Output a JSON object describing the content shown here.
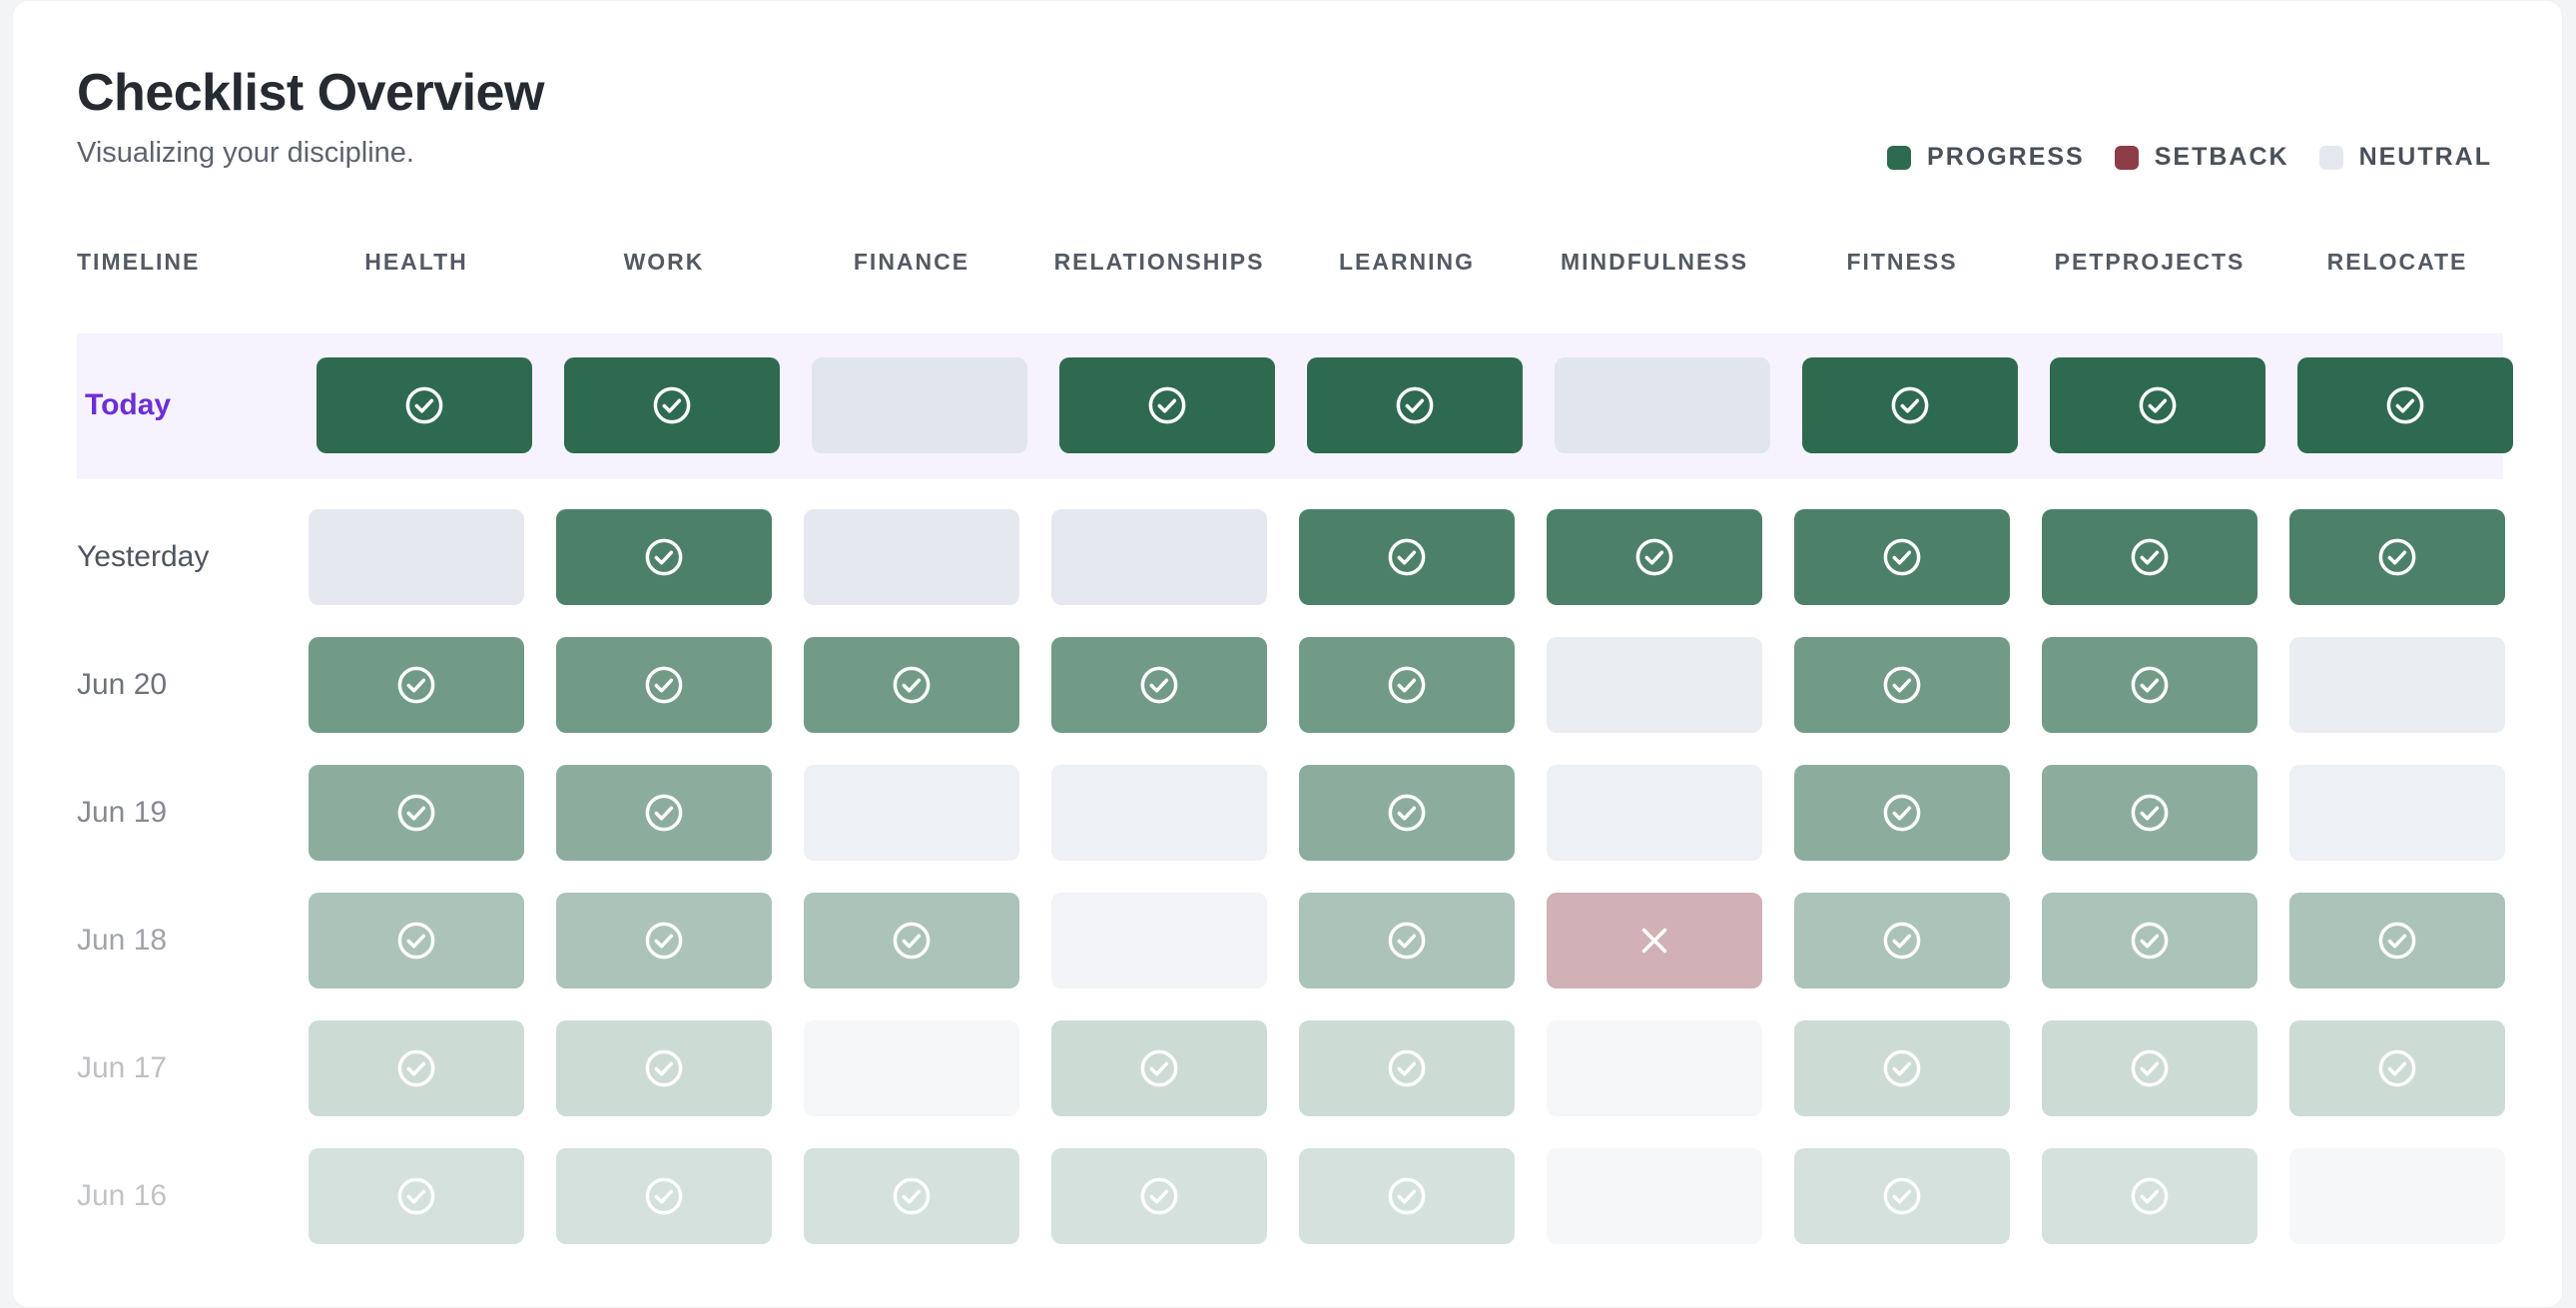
{
  "header": {
    "title": "Checklist Overview",
    "subtitle": "Visualizing your discipline."
  },
  "legend": [
    {
      "label": "PROGRESS",
      "color": "#2e6a4f"
    },
    {
      "label": "SETBACK",
      "color": "#8c3d48"
    },
    {
      "label": "NEUTRAL",
      "color": "#e4e8ee"
    }
  ],
  "columns": {
    "timeline_label": "TIMELINE",
    "items": [
      "HEALTH",
      "WORK",
      "FINANCE",
      "RELATIONSHIPS",
      "LEARNING",
      "MINDFULNESS",
      "FITNESS",
      "PETPROJECTS",
      "RELOCATE"
    ]
  },
  "colors": {
    "progress": "#2e6a4f",
    "setback": "#8c3d48",
    "neutral": "#e4e8ee",
    "today_highlight": "#f6f3ff",
    "today_label": "#6d2ed6"
  },
  "rows": [
    {
      "label": "Today",
      "highlight": true,
      "opacity": 1.0,
      "cells": [
        "progress",
        "progress",
        "neutral",
        "progress",
        "progress",
        "neutral",
        "progress",
        "progress",
        "progress"
      ]
    },
    {
      "label": "Yesterday",
      "highlight": false,
      "opacity": 0.85,
      "cells": [
        "neutral",
        "progress",
        "neutral",
        "neutral",
        "progress",
        "progress",
        "progress",
        "progress",
        "progress"
      ]
    },
    {
      "label": "Jun 20",
      "highlight": false,
      "opacity": 0.68,
      "cells": [
        "progress",
        "progress",
        "progress",
        "progress",
        "progress",
        "neutral",
        "progress",
        "progress",
        "neutral"
      ]
    },
    {
      "label": "Jun 19",
      "highlight": false,
      "opacity": 0.55,
      "cells": [
        "progress",
        "progress",
        "neutral",
        "neutral",
        "progress",
        "neutral",
        "progress",
        "progress",
        "neutral"
      ]
    },
    {
      "label": "Jun 18",
      "highlight": false,
      "opacity": 0.4,
      "cells": [
        "progress",
        "progress",
        "progress",
        "neutral",
        "progress",
        "setback",
        "progress",
        "progress",
        "progress"
      ]
    },
    {
      "label": "Jun 17",
      "highlight": false,
      "opacity": 0.24,
      "cells": [
        "progress",
        "progress",
        "neutral",
        "progress",
        "progress",
        "neutral",
        "progress",
        "progress",
        "progress"
      ]
    },
    {
      "label": "Jun 16",
      "highlight": false,
      "opacity": 0.2,
      "cells": [
        "progress",
        "progress",
        "progress",
        "progress",
        "progress",
        "neutral",
        "progress",
        "progress",
        "neutral"
      ]
    }
  ]
}
